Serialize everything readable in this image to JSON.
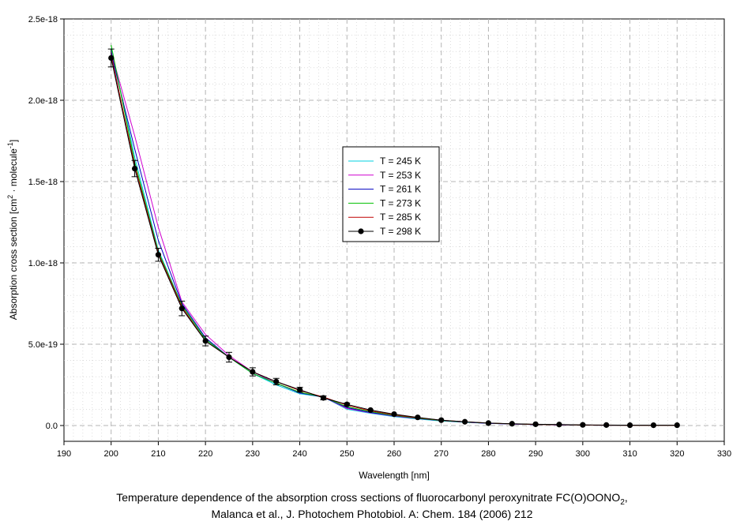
{
  "chart_data": {
    "type": "line",
    "xlabel": "Wavelength [nm]",
    "ylabel": "Absorption cross section [cm",
    "ylabel_sup1": "2",
    "ylabel_mid": " · molecule",
    "ylabel_sup2": "-1",
    "ylabel_end": "]",
    "xlim": [
      190,
      330
    ],
    "ylim": [
      -1e-19,
      2.5e-18
    ],
    "x_ticks": [
      190,
      200,
      210,
      220,
      230,
      240,
      250,
      260,
      270,
      280,
      290,
      300,
      310,
      320,
      330
    ],
    "x_tick_labels": [
      "190",
      "200",
      "210",
      "220",
      "230",
      "240",
      "250",
      "260",
      "270",
      "280",
      "290",
      "300",
      "310",
      "320",
      "330"
    ],
    "y_ticks": [
      0,
      5e-19,
      1e-18,
      1.5e-18,
      2e-18,
      2.5e-18
    ],
    "y_tick_labels": [
      "0.0",
      "5.0e-19",
      "1.0e-18",
      "1.5e-18",
      "2.0e-18",
      "2.5e-18"
    ],
    "grid": true,
    "legend_position": "center-right",
    "x": [
      200,
      205,
      210,
      215,
      220,
      225,
      230,
      235,
      240,
      245,
      250,
      255,
      260,
      265,
      270,
      275,
      280,
      285,
      290,
      295,
      300,
      305,
      310,
      315,
      320
    ],
    "series": [
      {
        "name": "T = 245 K",
        "color": "#00d0e0",
        "values": [
          2.32e-18,
          1.65e-18,
          1.08e-18,
          7.4e-19,
          5.3e-19,
          4.2e-19,
          3.2e-19,
          2.5e-19,
          1.95e-19,
          1.75e-19,
          1e-19,
          7.5e-20,
          5.5e-20,
          4e-20,
          2.8e-20,
          2e-20,
          1.3e-20,
          9e-21,
          6e-21,
          4e-21,
          3e-21,
          2e-21,
          1e-21,
          1e-21,
          1e-21
        ]
      },
      {
        "name": "T = 253 K",
        "color": "#d000d0",
        "values": [
          2.3e-18,
          1.78e-18,
          1.22e-18,
          7.6e-19,
          5.6e-19,
          4.3e-19,
          3.3e-19,
          2.6e-19,
          2e-19,
          1.75e-19,
          1.05e-19,
          7.8e-20,
          5.8e-20,
          4.2e-20,
          3e-20,
          2.1e-20,
          1.4e-20,
          9e-21,
          6e-21,
          4e-21,
          3e-21,
          2e-21,
          1e-21,
          1e-21,
          1e-21
        ]
      },
      {
        "name": "T = 261 K",
        "color": "#0000c0",
        "values": [
          2.29e-18,
          1.7e-18,
          1.14e-18,
          7.5e-19,
          5.4e-19,
          4.2e-19,
          3.2e-19,
          2.6e-19,
          2e-19,
          1.75e-19,
          1.1e-19,
          8e-20,
          6e-20,
          4.3e-20,
          3e-20,
          2.1e-20,
          1.4e-20,
          9e-21,
          6e-21,
          4e-21,
          3e-21,
          2e-21,
          1e-21,
          1e-21,
          1e-21
        ]
      },
      {
        "name": "T = 273 K",
        "color": "#00c000",
        "values": [
          2.34e-18,
          1.62e-18,
          1.07e-18,
          7.4e-19,
          5.3e-19,
          4.2e-19,
          3.2e-19,
          2.6e-19,
          2.05e-19,
          1.75e-19,
          1.15e-19,
          8.5e-20,
          6.2e-20,
          4.5e-20,
          3.1e-20,
          2.2e-20,
          1.5e-20,
          1e-20,
          7e-21,
          5e-21,
          3e-21,
          2e-21,
          1e-21,
          1e-21,
          1e-21
        ]
      },
      {
        "name": "T = 285 K",
        "color": "#c00000",
        "values": [
          2.28e-18,
          1.6e-18,
          1.06e-18,
          7.3e-19,
          5.2e-19,
          4.2e-19,
          3.3e-19,
          2.7e-19,
          2.15e-19,
          1.75e-19,
          1.25e-19,
          9e-20,
          6.6e-20,
          4.7e-20,
          3.3e-20,
          2.3e-20,
          1.5e-20,
          1e-20,
          7e-21,
          5e-21,
          3e-21,
          2e-21,
          1e-21,
          1e-21,
          1e-21
        ]
      },
      {
        "name": "T = 298 K",
        "color": "#000000",
        "markers": true,
        "values": [
          2.26e-18,
          1.58e-18,
          1.05e-18,
          7.2e-19,
          5.2e-19,
          4.2e-19,
          3.3e-19,
          2.7e-19,
          2.2e-19,
          1.7e-19,
          1.3e-19,
          9.5e-20,
          7e-20,
          5e-20,
          3.3e-20,
          2.3e-20,
          1.5e-20,
          1.1e-20,
          8e-21,
          6e-21,
          4e-21,
          3e-21,
          2e-21,
          2e-21,
          2e-21
        ],
        "errors": [
          5.5e-20,
          5e-20,
          4e-20,
          4.5e-20,
          3e-20,
          3e-20,
          2.5e-20,
          2e-20,
          1.5e-20,
          1.2e-20,
          8e-21,
          6e-21,
          5e-21,
          4e-21,
          3e-21,
          2e-21,
          2e-21,
          2e-21,
          1e-21,
          1e-21,
          1e-21,
          1e-21,
          1e-21,
          1e-21,
          1e-21
        ]
      }
    ]
  },
  "caption": {
    "line1_main": "Temperature dependence of the absorption cross sections of fluorocarbonyl peroxynitrate FC(O)OONO",
    "line1_sub": "2",
    "line1_end": ",",
    "line2": "Malanca et al., J. Photochem Photobiol. A: Chem. 184 (2006) 212"
  }
}
